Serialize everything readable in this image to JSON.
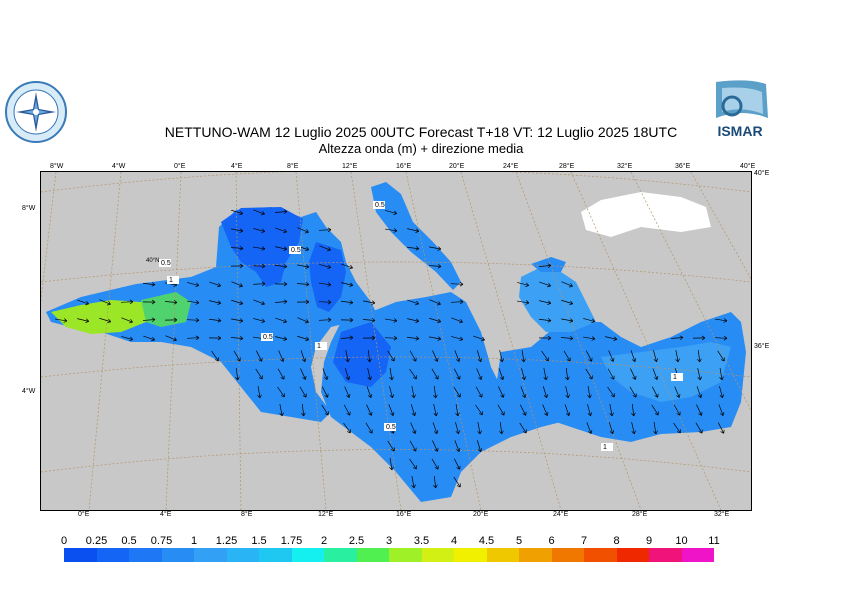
{
  "title": {
    "line1": "NETTUNO-WAM  12  Luglio   2025 00UTC Forecast T+18 VT: 12  Luglio   2025 18UTC",
    "line2": "Altezza onda (m) + direzione media"
  },
  "logos": {
    "left_icon": "compass-rose-logo-icon",
    "right_text": "ISMAR"
  },
  "top_ticks": [
    "8°W",
    "4°W",
    "0°E",
    "4°E",
    "8°E",
    "12°E",
    "16°E",
    "20°E",
    "24°E",
    "28°E",
    "32°E",
    "36°E",
    "40°E"
  ],
  "top_right_tick": "40°E",
  "left_ticks": [
    "8°W",
    "4°W"
  ],
  "right_ticks": [
    "40°E",
    "36°E"
  ],
  "bottom_ticks": [
    "0°E",
    "4°E",
    "8°E",
    "12°E",
    "16°E",
    "20°E",
    "24°E",
    "28°E",
    "32°E"
  ],
  "inner_lat_label": "40°N",
  "contour_labels": [
    "0.5",
    "1",
    "0.5",
    "1",
    "0.5",
    "0.5",
    "1",
    "1",
    "0.5"
  ],
  "legend": {
    "labels": [
      "0",
      "0.25",
      "0.5",
      "0.75",
      "1",
      "1.25",
      "1.5",
      "1.75",
      "2",
      "2.5",
      "3",
      "3.5",
      "4",
      "4.5",
      "5",
      "6",
      "7",
      "8",
      "9",
      "10",
      "11"
    ],
    "colors": [
      "#0a50f0",
      "#1464f5",
      "#1e78f5",
      "#288cf5",
      "#32a0f5",
      "#28b4f5",
      "#1ec8f0",
      "#14f0f0",
      "#28f0a0",
      "#50f050",
      "#a0f028",
      "#d2f014",
      "#f0f000",
      "#f0c800",
      "#f0a000",
      "#f07800",
      "#f05000",
      "#f02800",
      "#f0147a",
      "#f014c8"
    ]
  },
  "colors": {
    "land": "#c8c8c8",
    "sea_low": "#1464f5",
    "sea_mid": "#288cf5",
    "sea_high": "#3ca0f5",
    "graticule": "#b4946a"
  }
}
